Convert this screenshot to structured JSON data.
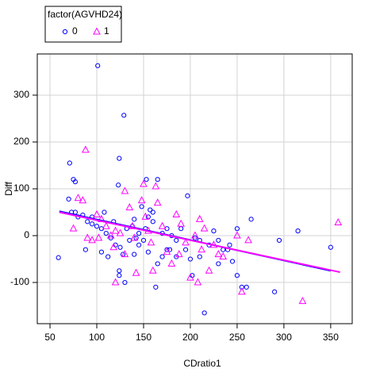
{
  "chart_data": {
    "type": "scatter",
    "x_label": "CDratio1",
    "y_label": "Diff",
    "legend_title": "factor(AGVHD24)",
    "legend": "top-left",
    "grid": true,
    "xlim": [
      36.4,
      373
    ],
    "ylim": [
      -188,
      388
    ],
    "xticks": [
      50,
      100,
      150,
      200,
      250,
      300,
      350
    ],
    "yticks": [
      -100,
      0,
      100,
      200,
      300
    ],
    "series": [
      {
        "name": "0",
        "color": "#0000ff",
        "marker": "circle",
        "x": [
          59,
          101,
          129,
          71,
          75,
          77,
          124,
          123,
          70,
          73,
          77,
          85,
          80,
          90,
          95,
          100,
          105,
          110,
          115,
          120,
          125,
          128,
          124,
          124,
          130,
          140,
          145,
          150,
          152,
          155,
          157,
          160,
          163,
          165,
          170,
          175,
          180,
          185,
          190,
          195,
          197,
          200,
          202,
          205,
          210,
          215,
          220,
          225,
          230,
          235,
          240,
          245,
          250,
          255,
          260,
          265,
          290,
          295,
          315,
          350,
          153,
          165,
          148,
          155,
          140,
          145,
          135,
          118,
          112,
          105,
          95,
          88,
          108,
          132,
          138,
          142,
          170,
          175,
          185,
          178,
          160,
          210,
          230,
          242,
          250
        ],
        "values": [
          -47,
          363,
          257,
          155,
          120,
          115,
          165,
          108,
          78,
          50,
          50,
          44,
          40,
          30,
          25,
          20,
          15,
          5,
          -5,
          -20,
          -25,
          -40,
          -75,
          -85,
          -100,
          -40,
          -20,
          -10,
          15,
          40,
          55,
          50,
          -110,
          -60,
          -45,
          -30,
          0,
          -10,
          15,
          -30,
          85,
          -50,
          -85,
          -5,
          -45,
          -165,
          -20,
          10,
          -60,
          -30,
          -30,
          -55,
          -85,
          -110,
          -110,
          35,
          -120,
          -10,
          10,
          -25,
          120,
          120,
          62,
          -35,
          35,
          5,
          -10,
          30,
          -45,
          -35,
          40,
          -30,
          50,
          15,
          20,
          -5,
          5,
          15,
          -45,
          -30,
          30,
          -10,
          -10,
          -20,
          15
        ]
      },
      {
        "name": "1",
        "color": "#ff00ff",
        "marker": "triangle",
        "x": [
          88,
          80,
          85,
          75,
          90,
          95,
          100,
          102,
          105,
          110,
          115,
          118,
          120,
          125,
          130,
          135,
          140,
          142,
          148,
          150,
          152,
          155,
          158,
          160,
          163,
          165,
          170,
          175,
          180,
          185,
          188,
          190,
          195,
          200,
          205,
          208,
          210,
          212,
          215,
          220,
          225,
          230,
          235,
          250,
          255,
          262,
          320,
          358,
          120,
          130,
          138
        ],
        "values": [
          183,
          80,
          75,
          15,
          -5,
          -10,
          45,
          -5,
          35,
          20,
          0,
          -25,
          10,
          5,
          95,
          60,
          -5,
          -80,
          75,
          110,
          40,
          10,
          -15,
          -75,
          105,
          70,
          20,
          -35,
          -60,
          45,
          -40,
          25,
          -15,
          -90,
          0,
          -100,
          35,
          -30,
          15,
          -75,
          -20,
          -40,
          -45,
          0,
          -120,
          -10,
          -140,
          28,
          -100,
          -40,
          20
        ]
      }
    ],
    "fit_lines": [
      {
        "color": "#0000ff",
        "x": [
          60,
          350
        ],
        "values": [
          52,
          -75
        ]
      },
      {
        "color": "#ff00ff",
        "x": [
          60,
          360
        ],
        "values": [
          50,
          -78
        ]
      }
    ]
  }
}
